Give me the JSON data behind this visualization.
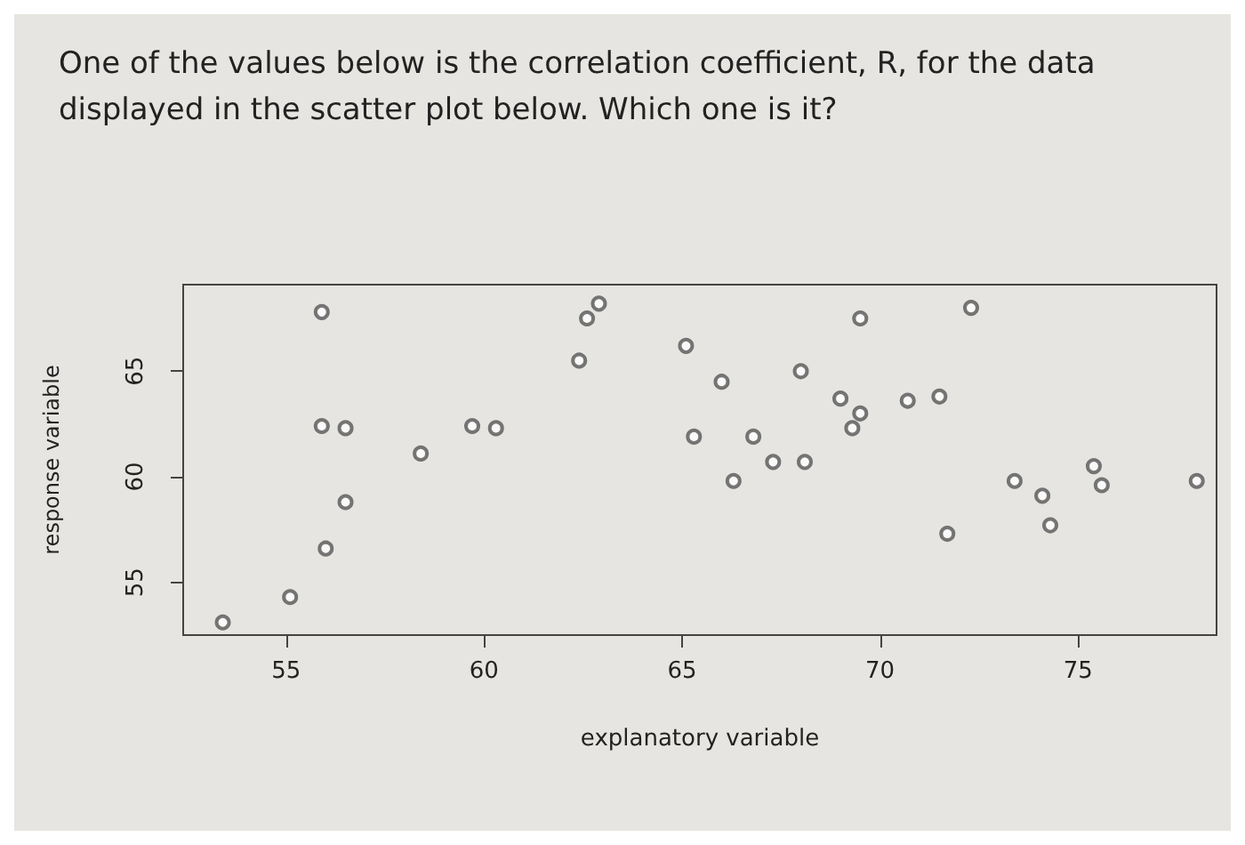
{
  "chart_data": {
    "type": "scatter",
    "title": "One of the values below is the correlation coefficient, R, for the data displayed in the scatter plot below. Which one is it?",
    "xlabel": "explanatory variable",
    "ylabel": "response variable",
    "x": [
      53.4,
      55.1,
      56.0,
      56.5,
      55.9,
      56.5,
      55.9,
      58.4,
      59.7,
      60.3,
      62.9,
      62.6,
      62.4,
      65.1,
      66.0,
      65.3,
      66.8,
      66.3,
      67.3,
      68.1,
      68.0,
      69.5,
      69.0,
      69.5,
      69.3,
      70.7,
      71.5,
      72.3,
      71.7,
      73.4,
      74.1,
      74.3,
      75.4,
      75.6,
      78.0
    ],
    "values": [
      53.1,
      54.3,
      56.6,
      58.8,
      62.4,
      62.3,
      67.8,
      61.1,
      62.4,
      62.3,
      68.2,
      67.5,
      65.5,
      66.2,
      64.5,
      61.9,
      61.9,
      59.8,
      60.7,
      60.7,
      65.0,
      67.5,
      63.7,
      63.0,
      62.3,
      63.6,
      63.8,
      68.0,
      57.3,
      59.8,
      59.1,
      57.7,
      60.5,
      59.6,
      59.8
    ],
    "color": "#555555",
    "marker": "circle",
    "xlim": [
      52.4,
      78.5
    ],
    "ylim": [
      52.5,
      69.1
    ],
    "xticks": [
      55,
      60,
      65,
      70,
      75
    ],
    "yticks": [
      55,
      60,
      65
    ],
    "grid": false
  }
}
